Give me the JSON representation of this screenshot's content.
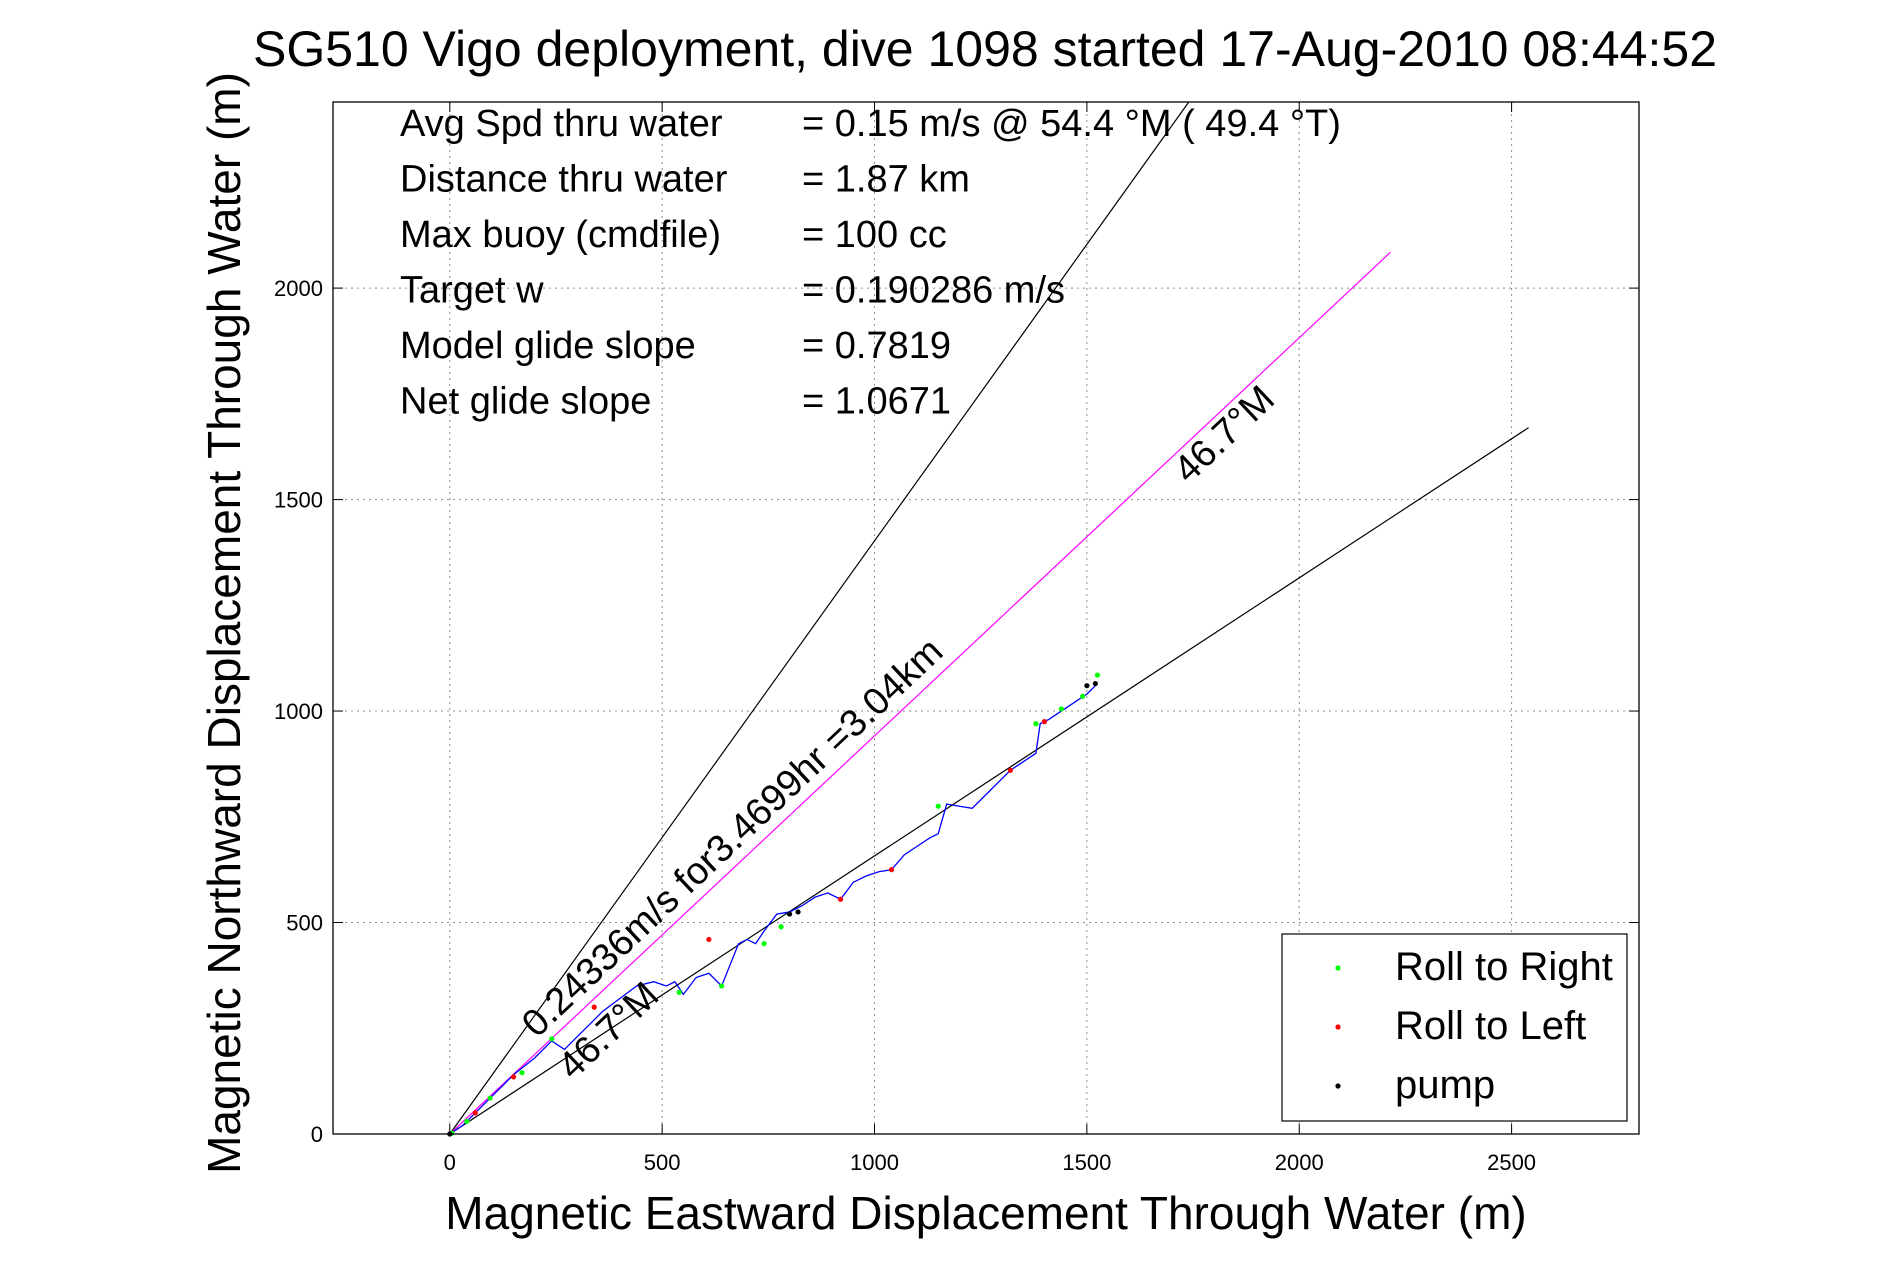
{
  "chart_data": {
    "type": "line",
    "title": "SG510 Vigo deployment, dive 1098 started 17-Aug-2010 08:44:52",
    "xlabel": "Magnetic Eastward Displacement Through Water (m)",
    "ylabel": "Magnetic Northward Displacement Through Water (m)",
    "xlim": [
      -275,
      2800
    ],
    "ylim": [
      0,
      2440
    ],
    "xticks": [
      0,
      500,
      1000,
      1500,
      2000,
      2500
    ],
    "yticks": [
      0,
      500,
      1000,
      1500,
      2000
    ],
    "grid": true,
    "legend_position": "bottom-right",
    "stats": [
      {
        "label": "Avg Spd thru water",
        "value": "=  0.15 m/s @  54.4 °M ( 49.4 °T)"
      },
      {
        "label": "Distance thru water",
        "value": "=  1.87 km"
      },
      {
        "label": "Max buoy (cmdfile)",
        "value": "= 100 cc"
      },
      {
        "label": "Target w",
        "value": "= 0.190286 m/s"
      },
      {
        "label": "Model glide slope",
        "value": "= 0.7819"
      },
      {
        "label": "Net glide slope",
        "value": "= 1.0671"
      }
    ],
    "annotations": {
      "target_line_label": "0.24336m/s for3.4699hr =3.04km",
      "upper_heading_label": "46.7°M",
      "lower_heading_label": "46.7°M"
    },
    "reference_lines": [
      {
        "name": "upper bound",
        "color": "#000000",
        "x": [
          0,
          1740
        ],
        "y": [
          0,
          2440
        ]
      },
      {
        "name": "target heading",
        "color": "#ff00ff",
        "x": [
          0,
          2215
        ],
        "y": [
          0,
          2085
        ]
      },
      {
        "name": "lower bound",
        "color": "#000000",
        "x": [
          0,
          2540
        ],
        "y": [
          0,
          1670
        ]
      }
    ],
    "track": {
      "color": "#0000ff",
      "x": [
        0,
        30,
        60,
        100,
        150,
        200,
        240,
        270,
        300,
        330,
        360,
        400,
        440,
        480,
        510,
        530,
        550,
        580,
        610,
        640,
        660,
        680,
        700,
        720,
        740,
        770,
        800,
        830,
        860,
        890,
        920,
        950,
        980,
        1010,
        1040,
        1070,
        1100,
        1130,
        1150,
        1170,
        1200,
        1230,
        1260,
        1290,
        1320,
        1350,
        1380,
        1390,
        1410,
        1440,
        1470,
        1500,
        1520
      ],
      "y": [
        0,
        20,
        50,
        90,
        140,
        180,
        220,
        200,
        230,
        260,
        290,
        320,
        350,
        360,
        350,
        360,
        330,
        370,
        380,
        350,
        400,
        450,
        460,
        450,
        480,
        520,
        525,
        540,
        560,
        570,
        555,
        595,
        610,
        620,
        625,
        660,
        680,
        700,
        710,
        780,
        775,
        770,
        800,
        830,
        860,
        880,
        900,
        970,
        980,
        1000,
        1020,
        1040,
        1060
      ]
    },
    "series": [
      {
        "name": "Roll to Right",
        "color": "#00ff00",
        "marker": "dot",
        "x": [
          5,
          40,
          95,
          170,
          240,
          540,
          640,
          740,
          780,
          1150,
          1380,
          1440,
          1490,
          1525
        ],
        "y": [
          2,
          30,
          85,
          145,
          225,
          335,
          350,
          450,
          490,
          775,
          970,
          1005,
          1035,
          1085
        ]
      },
      {
        "name": "Roll to Left",
        "color": "#ff0000",
        "marker": "dot",
        "x": [
          60,
          150,
          340,
          610,
          920,
          1040,
          1320,
          1400
        ],
        "y": [
          50,
          135,
          300,
          460,
          555,
          625,
          860,
          975
        ]
      },
      {
        "name": "pump",
        "color": "#000000",
        "marker": "dot",
        "x": [
          0,
          800,
          820,
          1500,
          1520
        ],
        "y": [
          0,
          520,
          525,
          1060,
          1065
        ]
      }
    ]
  }
}
